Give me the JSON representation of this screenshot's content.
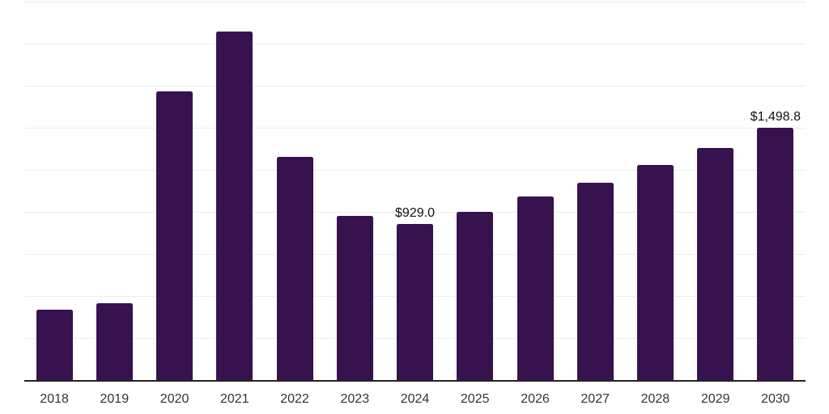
{
  "chart_data": {
    "type": "bar",
    "title": "",
    "xlabel": "",
    "ylabel": "",
    "categories": [
      "2018",
      "2019",
      "2020",
      "2021",
      "2022",
      "2023",
      "2024",
      "2025",
      "2026",
      "2027",
      "2028",
      "2029",
      "2030"
    ],
    "values": [
      420,
      455,
      1715,
      2070,
      1325,
      975,
      929.0,
      1000,
      1090,
      1175,
      1280,
      1380,
      1498.8
    ],
    "data_labels": [
      {
        "category": "2024",
        "text": "$929.0"
      },
      {
        "category": "2030",
        "text": "$1,498.8"
      }
    ],
    "ylim": [
      0,
      2250
    ],
    "gridline_step": 250,
    "grid": "horizontal-only",
    "legend": "none",
    "y_tick_labels": "none",
    "colors": {
      "bar": "#37124f",
      "background": "#ffffff",
      "gridline": "#ededed",
      "top_gridline": "#e8e8e8",
      "axis_line": "#222222",
      "tick_label": "#333333",
      "data_label": "#111111"
    }
  }
}
